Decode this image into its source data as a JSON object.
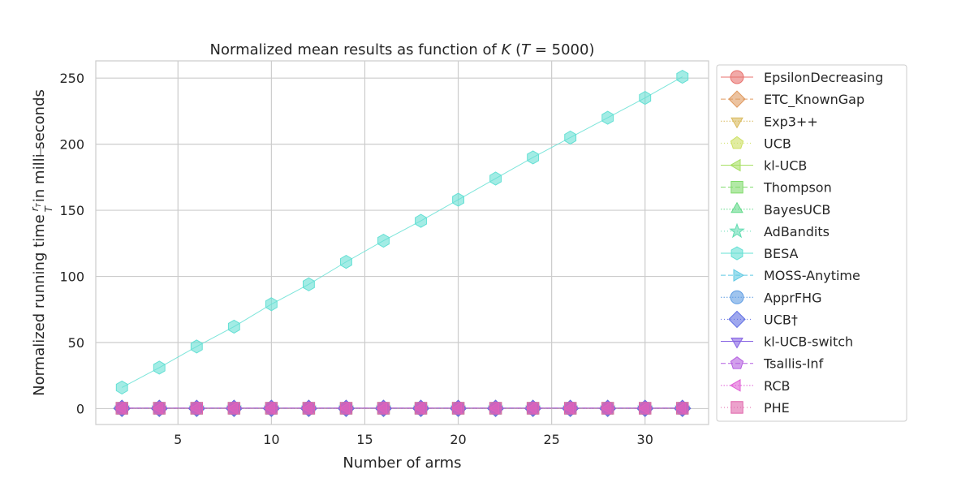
{
  "chart_data": {
    "type": "line",
    "title": "Normalized mean results as function of K (T = 5000)",
    "title_parts": {
      "prefix": "Normalized mean results as function of ",
      "k": "K",
      "open": " (",
      "t": "T",
      "eq": " = 5000)"
    },
    "xlabel": "Number of arms",
    "ylabel": "Normalized running time",
    "ylabel_frac_num": "r",
    "ylabel_frac_num_sub": "T",
    "ylabel_frac_den": "T",
    "ylabel_suffix": "in milli seconds",
    "xlim": [
      0.6,
      33.4
    ],
    "ylim": [
      -12,
      263
    ],
    "xticks": [
      5,
      10,
      15,
      20,
      25,
      30
    ],
    "yticks": [
      0,
      50,
      100,
      150,
      200,
      250
    ],
    "grid": true,
    "legend_position": "outside-right",
    "x": [
      2,
      4,
      6,
      8,
      10,
      12,
      14,
      16,
      18,
      20,
      22,
      24,
      26,
      28,
      30,
      32
    ],
    "series": [
      {
        "name": "EpsilonDecreasing",
        "marker": "circle",
        "color": "#e8726e",
        "dash": "",
        "values": [
          0.2,
          0.2,
          0.2,
          0.2,
          0.2,
          0.2,
          0.2,
          0.2,
          0.2,
          0.2,
          0.2,
          0.2,
          0.2,
          0.2,
          0.2,
          0.2
        ]
      },
      {
        "name": "ETC_KnownGap",
        "marker": "diamond",
        "color": "#e09b61",
        "dash": "6,3",
        "values": [
          0.2,
          0.2,
          0.2,
          0.2,
          0.2,
          0.2,
          0.2,
          0.2,
          0.2,
          0.2,
          0.2,
          0.2,
          0.2,
          0.2,
          0.2,
          0.2
        ]
      },
      {
        "name": "Exp3++",
        "marker": "triangle-down",
        "color": "#d9b95c",
        "dash": "1.5,2",
        "values": [
          0.3,
          0.3,
          0.3,
          0.3,
          0.3,
          0.3,
          0.3,
          0.3,
          0.3,
          0.3,
          0.3,
          0.3,
          0.3,
          0.3,
          0.3,
          0.3
        ]
      },
      {
        "name": "UCB",
        "marker": "pentagon",
        "color": "#cde062",
        "dash": "1,3",
        "values": [
          0.2,
          0.2,
          0.2,
          0.2,
          0.2,
          0.2,
          0.2,
          0.2,
          0.2,
          0.2,
          0.2,
          0.2,
          0.2,
          0.2,
          0.2,
          0.2
        ]
      },
      {
        "name": "kl-UCB",
        "marker": "triangle-left",
        "color": "#a7df63",
        "dash": "",
        "values": [
          0.4,
          0.4,
          0.4,
          0.4,
          0.4,
          0.4,
          0.4,
          0.4,
          0.4,
          0.4,
          0.4,
          0.4,
          0.4,
          0.4,
          0.4,
          0.4
        ]
      },
      {
        "name": "Thompson",
        "marker": "square",
        "color": "#7fdb6a",
        "dash": "6,3",
        "values": [
          0.3,
          0.3,
          0.3,
          0.3,
          0.3,
          0.3,
          0.3,
          0.3,
          0.3,
          0.3,
          0.3,
          0.3,
          0.3,
          0.3,
          0.3,
          0.3
        ]
      },
      {
        "name": "BayesUCB",
        "marker": "triangle-up",
        "color": "#62d98a",
        "dash": "1.5,2",
        "values": [
          0.4,
          0.4,
          0.4,
          0.4,
          0.4,
          0.4,
          0.4,
          0.4,
          0.4,
          0.4,
          0.4,
          0.4,
          0.4,
          0.4,
          0.4,
          0.4
        ]
      },
      {
        "name": "AdBandits",
        "marker": "star",
        "color": "#62dcb2",
        "dash": "1,3",
        "values": [
          0.3,
          0.3,
          0.3,
          0.3,
          0.3,
          0.3,
          0.3,
          0.3,
          0.3,
          0.3,
          0.3,
          0.3,
          0.3,
          0.3,
          0.3,
          0.3
        ]
      },
      {
        "name": "BESA",
        "marker": "hexagon",
        "color": "#65e0d4",
        "dash": "",
        "values": [
          16,
          31,
          47,
          62,
          79,
          94,
          111,
          127,
          142,
          158,
          174,
          190,
          205,
          220,
          235,
          251
        ]
      },
      {
        "name": "MOSS-Anytime",
        "marker": "triangle-right",
        "color": "#5fc9e3",
        "dash": "6,3",
        "values": [
          0.2,
          0.2,
          0.2,
          0.2,
          0.2,
          0.2,
          0.2,
          0.2,
          0.2,
          0.2,
          0.2,
          0.2,
          0.2,
          0.2,
          0.2,
          0.2
        ]
      },
      {
        "name": "ApprFHG",
        "marker": "circle",
        "color": "#5f9de3",
        "dash": "1.5,2",
        "values": [
          0.3,
          0.3,
          0.3,
          0.3,
          0.3,
          0.3,
          0.3,
          0.3,
          0.3,
          0.3,
          0.3,
          0.3,
          0.3,
          0.3,
          0.3,
          0.3
        ]
      },
      {
        "name": "UCB†",
        "marker": "diamond",
        "color": "#5f6ee3",
        "dash": "1,3",
        "values": [
          0.2,
          0.2,
          0.2,
          0.2,
          0.2,
          0.2,
          0.2,
          0.2,
          0.2,
          0.2,
          0.2,
          0.2,
          0.2,
          0.2,
          0.2,
          0.2
        ]
      },
      {
        "name": "kl-UCB-switch",
        "marker": "triangle-down",
        "color": "#8562e3",
        "dash": "",
        "values": [
          0.4,
          0.4,
          0.4,
          0.4,
          0.4,
          0.4,
          0.4,
          0.4,
          0.4,
          0.4,
          0.4,
          0.4,
          0.4,
          0.4,
          0.4,
          0.4
        ]
      },
      {
        "name": "Tsallis-Inf",
        "marker": "pentagon",
        "color": "#b45fe0",
        "dash": "6,3",
        "values": [
          0.5,
          0.5,
          0.5,
          0.5,
          0.5,
          0.5,
          0.5,
          0.5,
          0.5,
          0.5,
          0.5,
          0.5,
          0.5,
          0.5,
          0.5,
          0.5
        ]
      },
      {
        "name": "RCB",
        "marker": "triangle-left",
        "color": "#e05fd6",
        "dash": "1.5,2",
        "values": [
          0.3,
          0.3,
          0.3,
          0.3,
          0.3,
          0.3,
          0.3,
          0.3,
          0.3,
          0.3,
          0.3,
          0.3,
          0.3,
          0.3,
          0.3,
          0.3
        ]
      },
      {
        "name": "PHE",
        "marker": "square",
        "color": "#e064aa",
        "dash": "1,3",
        "values": [
          0.3,
          0.3,
          0.3,
          0.3,
          0.3,
          0.3,
          0.3,
          0.3,
          0.3,
          0.3,
          0.3,
          0.3,
          0.3,
          0.3,
          0.3,
          0.3
        ]
      }
    ]
  }
}
